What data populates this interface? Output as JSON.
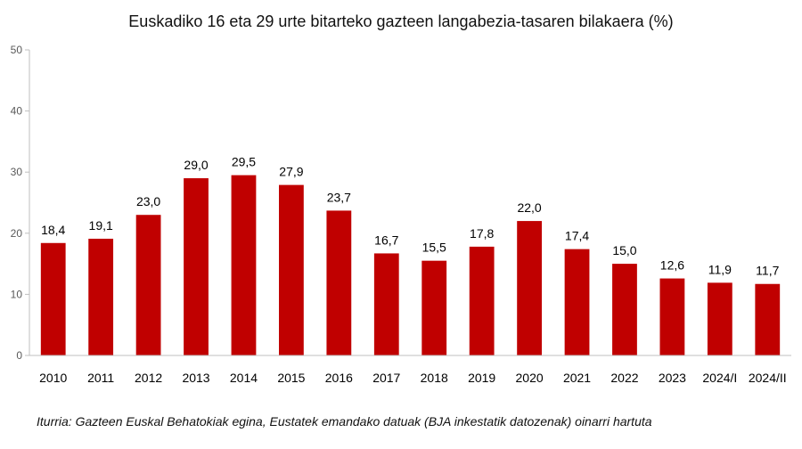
{
  "chart_data": {
    "type": "bar",
    "title": "Euskadiko 16 eta 29 urte bitarteko gazteen langabezia-tasaren bilakaera (%)",
    "categories": [
      "2010",
      "2011",
      "2012",
      "2013",
      "2014",
      "2015",
      "2016",
      "2017",
      "2018",
      "2019",
      "2020",
      "2021",
      "2022",
      "2023",
      "2024/I",
      "2024/II"
    ],
    "values": [
      18.4,
      19.1,
      23.0,
      29.0,
      29.5,
      27.9,
      23.7,
      16.7,
      15.5,
      17.8,
      22.0,
      17.4,
      15.0,
      12.6,
      11.9,
      11.7
    ],
    "data_labels": [
      "18,4",
      "19,1",
      "23,0",
      "29,0",
      "29,5",
      "27,9",
      "23,7",
      "16,7",
      "15,5",
      "17,8",
      "22,0",
      "17,4",
      "15,0",
      "12,6",
      "11,9",
      "11,7"
    ],
    "xlabel": "",
    "ylabel": "",
    "ylim": [
      0,
      50
    ],
    "yticks": [
      0,
      10,
      20,
      30,
      40,
      50
    ],
    "grid": false,
    "legend": "none",
    "bar_color": "#c00000",
    "source_note": "Iturria: Gazteen Euskal Behatokiak egina, Eustatek emandako datuak (BJA inkestatik datozenak) oinarri hartuta"
  }
}
